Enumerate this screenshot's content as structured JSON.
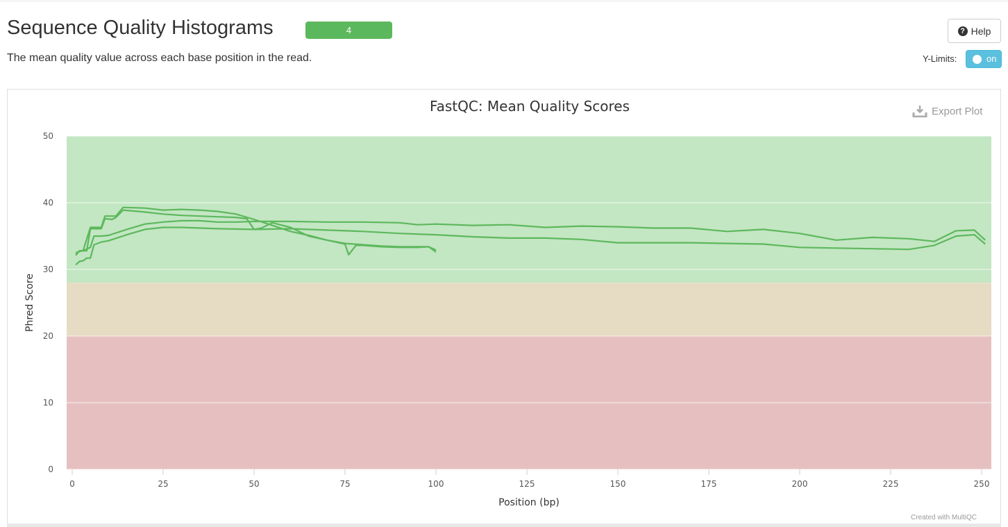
{
  "header": {
    "title": "Sequence Quality Histograms",
    "sample_count": "4",
    "subtitle": "The mean quality value across each base position in the read.",
    "help_label": "Help",
    "ylimits_label": "Y-Limits:",
    "ylimits_toggle": "on"
  },
  "plot": {
    "export_label": "Export Plot",
    "credit": "Created with MultiQC"
  },
  "colors": {
    "line": "#5cb85c",
    "zone_good": "#c3e6c3",
    "zone_warn": "#e6dcc3",
    "zone_fail": "#e6c0c0",
    "badge": "#5cb85c",
    "toggle": "#5bc0de"
  },
  "icons": [
    "question-circle-icon",
    "download-icon"
  ],
  "chart_data": {
    "type": "line",
    "title": "FastQC: Mean Quality Scores",
    "xlabel": "Position (bp)",
    "ylabel": "Phred Score",
    "xlim": [
      0,
      251
    ],
    "ylim": [
      0,
      50
    ],
    "xticks": [
      0,
      25,
      50,
      75,
      100,
      125,
      150,
      175,
      200,
      225,
      250
    ],
    "yticks": [
      0,
      10,
      20,
      30,
      40,
      50
    ],
    "grid": true,
    "zones": [
      {
        "from": 28,
        "to": 50,
        "color": "#c3e6c3"
      },
      {
        "from": 20,
        "to": 28,
        "color": "#e6dcc3"
      },
      {
        "from": 0,
        "to": 20,
        "color": "#e6c0c0"
      }
    ],
    "series": [
      {
        "color": "#5cb85c",
        "points": [
          [
            1,
            32.3
          ],
          [
            2,
            32.7
          ],
          [
            3,
            32.8
          ],
          [
            4,
            32.8
          ],
          [
            5,
            36.1
          ],
          [
            8,
            36.1
          ],
          [
            9,
            37.6
          ],
          [
            11,
            37.5
          ],
          [
            12,
            37.8
          ],
          [
            14,
            38.9
          ],
          [
            20,
            38.6
          ],
          [
            25,
            38.3
          ],
          [
            30,
            38.1
          ],
          [
            35,
            38.0
          ],
          [
            40,
            37.9
          ],
          [
            45,
            37.8
          ],
          [
            48,
            37.6
          ],
          [
            50,
            36.0
          ],
          [
            52,
            36.2
          ],
          [
            55,
            37.0
          ],
          [
            60,
            36.3
          ],
          [
            65,
            35.0
          ],
          [
            70,
            34.4
          ],
          [
            75,
            33.9
          ],
          [
            80,
            33.7
          ],
          [
            85,
            33.5
          ],
          [
            90,
            33.4
          ],
          [
            95,
            33.4
          ],
          [
            98,
            33.4
          ],
          [
            100,
            32.9
          ]
        ]
      },
      {
        "color": "#5cb85c",
        "points": [
          [
            1,
            32.1
          ],
          [
            2,
            32.8
          ],
          [
            3,
            32.8
          ],
          [
            5,
            36.3
          ],
          [
            8,
            36.3
          ],
          [
            9,
            38.0
          ],
          [
            12,
            38.0
          ],
          [
            14,
            39.3
          ],
          [
            20,
            39.2
          ],
          [
            25,
            38.9
          ],
          [
            30,
            39.0
          ],
          [
            35,
            38.9
          ],
          [
            40,
            38.7
          ],
          [
            45,
            38.3
          ],
          [
            50,
            37.5
          ],
          [
            55,
            36.6
          ],
          [
            60,
            35.7
          ],
          [
            65,
            35.1
          ],
          [
            70,
            34.4
          ],
          [
            75,
            33.8
          ],
          [
            76,
            32.2
          ],
          [
            78,
            33.6
          ],
          [
            80,
            33.6
          ],
          [
            85,
            33.4
          ],
          [
            90,
            33.3
          ],
          [
            95,
            33.3
          ],
          [
            98,
            33.4
          ],
          [
            100,
            32.6
          ]
        ]
      },
      {
        "color": "#5cb85c",
        "points": [
          [
            1,
            30.7
          ],
          [
            2,
            31.2
          ],
          [
            3,
            31.3
          ],
          [
            4,
            31.7
          ],
          [
            5,
            31.7
          ],
          [
            6,
            33.7
          ],
          [
            8,
            34.1
          ],
          [
            10,
            34.3
          ],
          [
            15,
            35.2
          ],
          [
            20,
            36.0
          ],
          [
            25,
            36.3
          ],
          [
            30,
            36.3
          ],
          [
            40,
            36.1
          ],
          [
            50,
            36.0
          ],
          [
            60,
            36.1
          ],
          [
            70,
            35.9
          ],
          [
            80,
            35.7
          ],
          [
            90,
            35.4
          ],
          [
            100,
            35.2
          ],
          [
            110,
            34.9
          ],
          [
            120,
            34.7
          ],
          [
            130,
            34.7
          ],
          [
            140,
            34.5
          ],
          [
            150,
            34.0
          ],
          [
            160,
            34.0
          ],
          [
            170,
            34.0
          ],
          [
            180,
            33.9
          ],
          [
            190,
            33.8
          ],
          [
            200,
            33.3
          ],
          [
            210,
            33.2
          ],
          [
            220,
            33.1
          ],
          [
            230,
            33.0
          ],
          [
            237,
            33.6
          ],
          [
            243,
            35.0
          ],
          [
            248,
            35.2
          ],
          [
            251,
            33.8
          ]
        ]
      },
      {
        "color": "#5cb85c",
        "points": [
          [
            1,
            32.5
          ],
          [
            2,
            32.7
          ],
          [
            3,
            32.8
          ],
          [
            5,
            33.3
          ],
          [
            6,
            35.0
          ],
          [
            8,
            35.0
          ],
          [
            10,
            35.1
          ],
          [
            15,
            36.0
          ],
          [
            20,
            36.8
          ],
          [
            25,
            37.1
          ],
          [
            30,
            37.3
          ],
          [
            35,
            37.3
          ],
          [
            40,
            37.1
          ],
          [
            45,
            37.1
          ],
          [
            50,
            37.2
          ],
          [
            60,
            37.2
          ],
          [
            70,
            37.1
          ],
          [
            80,
            37.1
          ],
          [
            90,
            37.0
          ],
          [
            95,
            36.7
          ],
          [
            100,
            36.8
          ],
          [
            110,
            36.6
          ],
          [
            120,
            36.7
          ],
          [
            130,
            36.3
          ],
          [
            140,
            36.5
          ],
          [
            150,
            36.4
          ],
          [
            160,
            36.2
          ],
          [
            170,
            36.2
          ],
          [
            180,
            35.7
          ],
          [
            190,
            36.0
          ],
          [
            200,
            35.4
          ],
          [
            210,
            34.4
          ],
          [
            220,
            34.8
          ],
          [
            230,
            34.6
          ],
          [
            237,
            34.2
          ],
          [
            243,
            35.8
          ],
          [
            248,
            35.9
          ],
          [
            251,
            34.4
          ]
        ]
      }
    ]
  }
}
